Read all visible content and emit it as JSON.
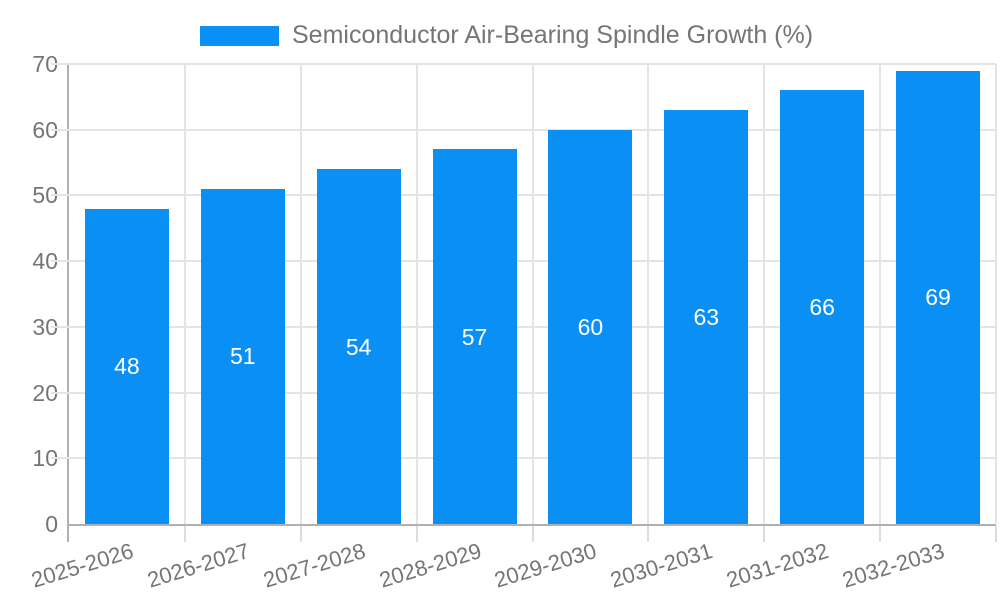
{
  "legend": {
    "label": "Semiconductor Air-Bearing Spindle Growth (%)"
  },
  "chart_data": {
    "type": "bar",
    "title": "Semiconductor Air-Bearing Spindle Growth (%)",
    "categories": [
      "2025-2026",
      "2026-2027",
      "2027-2028",
      "2028-2029",
      "2029-2030",
      "2030-2031",
      "2031-2032",
      "2032-2033"
    ],
    "values": [
      48,
      51,
      54,
      57,
      60,
      63,
      66,
      69
    ],
    "xlabel": "",
    "ylabel": "",
    "ylim": [
      0,
      70
    ],
    "ytick_step": 10,
    "grid": true,
    "legend_position": "top",
    "value_labels": "inside-center",
    "colors": {
      "bar": "#0a8ff5",
      "value_label": "#ffffff",
      "axis_text": "#757575",
      "axis_line": "#b0b0b0",
      "gridline": "#e4e4e4"
    }
  }
}
